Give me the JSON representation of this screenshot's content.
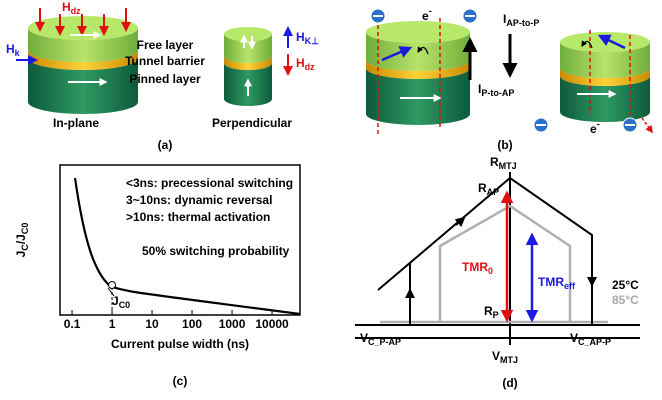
{
  "panel_a": {
    "h_dz": {
      "main": "H",
      "sub": "dz"
    },
    "h_k": {
      "main": "H",
      "sub": "k"
    },
    "layers": [
      "Free layer",
      "Tunnel barrier",
      "Pinned layer"
    ],
    "h_k_perp": {
      "main": "H",
      "sub": "K⊥"
    },
    "h_dz_perp": {
      "main": "H",
      "sub": "dz"
    },
    "left_caption": "In-plane",
    "right_caption": "Perpendicular",
    "label": "(a)"
  },
  "panel_b": {
    "electron_left": {
      "main": "e",
      "sup": "-"
    },
    "electron_right": {
      "main": "e",
      "sup": "-"
    },
    "i_p_to_ap": {
      "main": "I",
      "sub": "P-to-AP"
    },
    "i_ap_to_p": {
      "main": "I",
      "sub": "AP-to-P"
    },
    "label": "(b)"
  },
  "panel_c": {
    "y_label": {
      "main": "J",
      "sub": "C",
      "rest": "/J",
      "sub2": "C0"
    },
    "x_label": "Current pulse width (ns)",
    "notes": [
      "<3ns: precessional switching",
      "3~10ns: dynamic reversal",
      ">10ns: thermal activation",
      "50% switching probability"
    ],
    "point_label": {
      "main": "J",
      "sub": "C0"
    },
    "xscale": "log",
    "xlim": [
      0.05,
      50000
    ],
    "xticks": [
      {
        "value": 0.1,
        "label": "0.1"
      },
      1,
      10,
      100,
      1000,
      10000
    ],
    "label": "(c)"
  },
  "panel_d": {
    "r_mtj": {
      "main": "R",
      "sub": "MTJ"
    },
    "r_ap": {
      "main": "R",
      "sub": "AP"
    },
    "r_p": {
      "main": "R",
      "sub": "P"
    },
    "tmr_0": {
      "main": "TMR",
      "sub": "0"
    },
    "tmr_eff": {
      "main": "TMR",
      "sub": "eff"
    },
    "temp_25": "25°C",
    "temp_85": "85°C",
    "v_c_p_ap": {
      "main": "V",
      "sub": "C_P-AP"
    },
    "v_c_ap_p": {
      "main": "V",
      "sub": "C_AP-P"
    },
    "v_mtj": {
      "main": "V",
      "sub": "MTJ"
    },
    "label": "(d)"
  }
}
